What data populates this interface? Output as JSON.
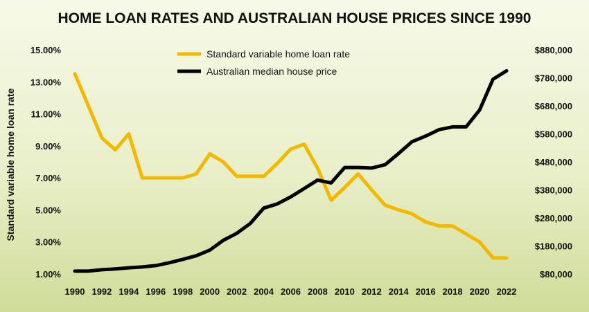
{
  "chart_data": {
    "type": "line",
    "title": "HOME LOAN RATES AND AUSTRALIAN HOUSE PRICES SINCE 1990",
    "xlabel": "",
    "ylabel": "Standard variable home loan rate",
    "y2label": "",
    "x": [
      1990,
      1991,
      1992,
      1993,
      1994,
      1995,
      1996,
      1997,
      1998,
      1999,
      2000,
      2001,
      2002,
      2003,
      2004,
      2005,
      2006,
      2007,
      2008,
      2009,
      2010,
      2011,
      2012,
      2013,
      2014,
      2015,
      2016,
      2017,
      2018,
      2019,
      2020,
      2021,
      2022
    ],
    "x_tick_labels": [
      "1990",
      "1992",
      "1994",
      "1996",
      "1998",
      "2000",
      "2002",
      "2004",
      "2006",
      "2008",
      "2010",
      "2012",
      "2014",
      "2016",
      "2018",
      "2020",
      "2022"
    ],
    "y_tick_labels": [
      "1.00%",
      "3.00%",
      "5.00%",
      "7.00%",
      "9.00%",
      "11.00%",
      "13.00%",
      "15.00%"
    ],
    "y2_tick_labels": [
      "$80,000",
      "$180,000",
      "$280,000",
      "$380,000",
      "$480,000",
      "$580,000",
      "$680,000",
      "$780,000",
      "$880,000"
    ],
    "ylim": [
      1,
      15
    ],
    "y2lim": [
      80000,
      880000
    ],
    "grid": false,
    "legend_position": "top-center",
    "series": [
      {
        "name": "Standard variable home loan rate",
        "axis": "left",
        "color": "#f5b800",
        "values": [
          13.5,
          11.5,
          9.5,
          8.75,
          9.75,
          7.0,
          7.0,
          7.0,
          7.0,
          7.25,
          8.5,
          8.0,
          7.1,
          7.1,
          7.1,
          7.9,
          8.8,
          9.1,
          7.6,
          5.6,
          6.4,
          7.25,
          6.25,
          5.3,
          5.0,
          4.75,
          4.25,
          4.0,
          4.0,
          3.5,
          3.0,
          2.0,
          2.0
        ]
      },
      {
        "name": "Australian median house price",
        "axis": "right",
        "color": "#000000",
        "values": [
          90000,
          90000,
          95000,
          98000,
          102000,
          105000,
          110000,
          120000,
          132000,
          145000,
          165000,
          200000,
          225000,
          260000,
          315000,
          330000,
          355000,
          385000,
          415000,
          405000,
          460000,
          460000,
          458000,
          470000,
          510000,
          552000,
          572000,
          595000,
          605000,
          605000,
          665000,
          775000,
          805000
        ]
      }
    ]
  }
}
